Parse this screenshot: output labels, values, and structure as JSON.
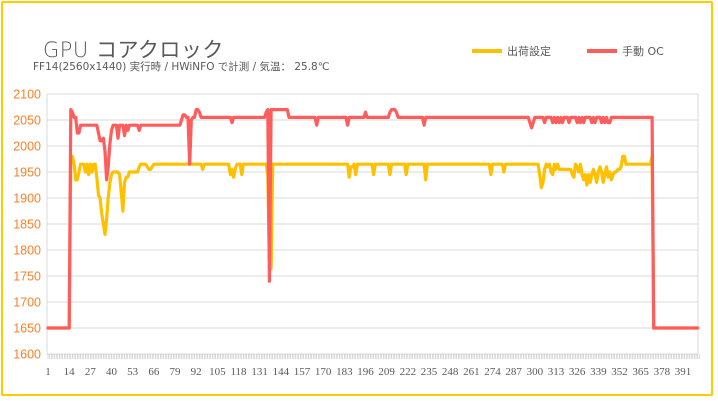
{
  "chart_data": {
    "type": "line",
    "title": "GPU コアクロック",
    "subtitle": "FF14(2560x1440) 実行時 / HWiNFO で計測 / 気温： 25.8℃",
    "xlabel": "",
    "ylabel": "",
    "ylim": [
      1600,
      2100
    ],
    "yticks": [
      1600,
      1650,
      1700,
      1750,
      1800,
      1850,
      1900,
      1950,
      2000,
      2050,
      2100
    ],
    "xticks": [
      1,
      14,
      27,
      40,
      53,
      66,
      79,
      92,
      105,
      118,
      131,
      144,
      157,
      170,
      183,
      196,
      209,
      222,
      235,
      248,
      261,
      274,
      287,
      300,
      313,
      326,
      339,
      352,
      365,
      378,
      391
    ],
    "x_range": [
      1,
      401
    ],
    "grid": true,
    "legend_position": "top-right",
    "series": [
      {
        "name": "出荷設定",
        "color": "#ffc000",
        "segments": [
          [
            1,
            1650
          ],
          [
            13,
            1650
          ],
          [
            14,
            1650
          ],
          [
            15,
            1980
          ],
          [
            16,
            1980
          ],
          [
            17,
            1965
          ],
          [
            18,
            1935
          ],
          [
            19,
            1935
          ],
          [
            20,
            1950
          ],
          [
            21,
            1965
          ],
          [
            22,
            1965
          ],
          [
            23,
            1965
          ],
          [
            24,
            1950
          ],
          [
            25,
            1965
          ],
          [
            26,
            1945
          ],
          [
            27,
            1965
          ],
          [
            28,
            1950
          ],
          [
            29,
            1965
          ],
          [
            30,
            1965
          ],
          [
            31,
            1940
          ],
          [
            32,
            1905
          ],
          [
            33,
            1900
          ],
          [
            34,
            1870
          ],
          [
            35,
            1850
          ],
          [
            36,
            1830
          ],
          [
            37,
            1860
          ],
          [
            38,
            1900
          ],
          [
            39,
            1930
          ],
          [
            40,
            1945
          ],
          [
            41,
            1950
          ],
          [
            42,
            1950
          ],
          [
            43,
            1950
          ],
          [
            44,
            1950
          ],
          [
            45,
            1945
          ],
          [
            46,
            1910
          ],
          [
            47,
            1875
          ],
          [
            48,
            1930
          ],
          [
            49,
            1940
          ],
          [
            50,
            1940
          ],
          [
            51,
            1950
          ],
          [
            52,
            1950
          ],
          [
            53,
            1950
          ],
          [
            54,
            1950
          ],
          [
            55,
            1950
          ],
          [
            56,
            1950
          ],
          [
            57,
            1960
          ],
          [
            58,
            1965
          ],
          [
            59,
            1965
          ],
          [
            60,
            1965
          ],
          [
            61,
            1965
          ],
          [
            62,
            1960
          ],
          [
            63,
            1955
          ],
          [
            64,
            1955
          ],
          [
            65,
            1960
          ],
          [
            66,
            1965
          ],
          [
            70,
            1965
          ],
          [
            80,
            1965
          ],
          [
            90,
            1965
          ],
          [
            95,
            1965
          ],
          [
            96,
            1955
          ],
          [
            97,
            1965
          ],
          [
            110,
            1965
          ],
          [
            112,
            1965
          ],
          [
            113,
            1945
          ],
          [
            114,
            1955
          ],
          [
            115,
            1940
          ],
          [
            116,
            1955
          ],
          [
            117,
            1965
          ],
          [
            119,
            1965
          ],
          [
            120,
            1945
          ],
          [
            121,
            1965
          ],
          [
            135,
            1965
          ],
          [
            136,
            1945
          ],
          [
            137,
            1780
          ],
          [
            138,
            1765
          ],
          [
            139,
            1965
          ],
          [
            150,
            1965
          ],
          [
            170,
            1965
          ],
          [
            185,
            1965
          ],
          [
            186,
            1940
          ],
          [
            187,
            1960
          ],
          [
            188,
            1960
          ],
          [
            189,
            1965
          ],
          [
            190,
            1945
          ],
          [
            191,
            1965
          ],
          [
            200,
            1965
          ],
          [
            201,
            1945
          ],
          [
            202,
            1965
          ],
          [
            210,
            1965
          ],
          [
            211,
            1945
          ],
          [
            212,
            1965
          ],
          [
            220,
            1965
          ],
          [
            221,
            1945
          ],
          [
            222,
            1965
          ],
          [
            232,
            1965
          ],
          [
            233,
            1935
          ],
          [
            234,
            1965
          ],
          [
            250,
            1965
          ],
          [
            270,
            1965
          ],
          [
            272,
            1965
          ],
          [
            273,
            1945
          ],
          [
            274,
            1965
          ],
          [
            280,
            1965
          ],
          [
            281,
            1950
          ],
          [
            282,
            1965
          ],
          [
            290,
            1965
          ],
          [
            300,
            1965
          ],
          [
            302,
            1965
          ],
          [
            303,
            1945
          ],
          [
            304,
            1920
          ],
          [
            305,
            1930
          ],
          [
            306,
            1955
          ],
          [
            307,
            1965
          ],
          [
            308,
            1960
          ],
          [
            309,
            1965
          ],
          [
            310,
            1950
          ],
          [
            311,
            1945
          ],
          [
            312,
            1965
          ],
          [
            313,
            1955
          ],
          [
            314,
            1965
          ],
          [
            315,
            1955
          ],
          [
            318,
            1955
          ],
          [
            322,
            1955
          ],
          [
            323,
            1945
          ],
          [
            324,
            1940
          ],
          [
            325,
            1965
          ],
          [
            326,
            1960
          ],
          [
            327,
            1950
          ],
          [
            328,
            1965
          ],
          [
            329,
            1945
          ],
          [
            330,
            1935
          ],
          [
            331,
            1945
          ],
          [
            332,
            1925
          ],
          [
            333,
            1945
          ],
          [
            334,
            1930
          ],
          [
            335,
            1945
          ],
          [
            336,
            1955
          ],
          [
            337,
            1945
          ],
          [
            338,
            1930
          ],
          [
            339,
            1950
          ],
          [
            340,
            1960
          ],
          [
            341,
            1950
          ],
          [
            342,
            1930
          ],
          [
            343,
            1945
          ],
          [
            344,
            1960
          ],
          [
            345,
            1940
          ],
          [
            346,
            1950
          ],
          [
            347,
            1935
          ],
          [
            348,
            1945
          ],
          [
            349,
            1950
          ],
          [
            350,
            1950
          ],
          [
            351,
            1955
          ],
          [
            352,
            1955
          ],
          [
            353,
            1960
          ],
          [
            354,
            1980
          ],
          [
            355,
            1980
          ],
          [
            356,
            1965
          ],
          [
            360,
            1965
          ],
          [
            365,
            1965
          ],
          [
            370,
            1965
          ],
          [
            371,
            1965
          ],
          [
            372,
            1980
          ],
          [
            373,
            1650
          ],
          [
            380,
            1650
          ],
          [
            400,
            1650
          ]
        ]
      },
      {
        "name": "手動 OC",
        "color": "#ff5c5c",
        "segments": [
          [
            1,
            1650
          ],
          [
            13,
            1650
          ],
          [
            14,
            1650
          ],
          [
            15,
            2070
          ],
          [
            16,
            2065
          ],
          [
            17,
            2055
          ],
          [
            18,
            2055
          ],
          [
            19,
            2025
          ],
          [
            20,
            2025
          ],
          [
            21,
            2040
          ],
          [
            22,
            2040
          ],
          [
            23,
            2040
          ],
          [
            30,
            2040
          ],
          [
            31,
            2040
          ],
          [
            32,
            2025
          ],
          [
            33,
            2010
          ],
          [
            34,
            2010
          ],
          [
            35,
            2015
          ],
          [
            36,
            1990
          ],
          [
            37,
            1935
          ],
          [
            38,
            1960
          ],
          [
            39,
            2005
          ],
          [
            40,
            2030
          ],
          [
            41,
            2040
          ],
          [
            42,
            2040
          ],
          [
            43,
            2040
          ],
          [
            44,
            2015
          ],
          [
            45,
            2040
          ],
          [
            46,
            2040
          ],
          [
            47,
            2040
          ],
          [
            48,
            2020
          ],
          [
            49,
            2040
          ],
          [
            50,
            2030
          ],
          [
            51,
            2040
          ],
          [
            52,
            2040
          ],
          [
            55,
            2040
          ],
          [
            56,
            2040
          ],
          [
            57,
            2030
          ],
          [
            58,
            2040
          ],
          [
            62,
            2040
          ],
          [
            70,
            2040
          ],
          [
            80,
            2040
          ],
          [
            82,
            2040
          ],
          [
            83,
            2050
          ],
          [
            84,
            2060
          ],
          [
            85,
            2060
          ],
          [
            86,
            2055
          ],
          [
            87,
            2055
          ],
          [
            88,
            1965
          ],
          [
            89,
            2050
          ],
          [
            90,
            2055
          ],
          [
            91,
            2055
          ],
          [
            92,
            2070
          ],
          [
            93,
            2070
          ],
          [
            94,
            2065
          ],
          [
            95,
            2055
          ],
          [
            100,
            2055
          ],
          [
            110,
            2055
          ],
          [
            113,
            2055
          ],
          [
            114,
            2045
          ],
          [
            115,
            2055
          ],
          [
            125,
            2055
          ],
          [
            134,
            2055
          ],
          [
            135,
            2065
          ],
          [
            136,
            2070
          ],
          [
            137,
            1740
          ],
          [
            138,
            2070
          ],
          [
            140,
            2070
          ],
          [
            148,
            2070
          ],
          [
            149,
            2055
          ],
          [
            150,
            2055
          ],
          [
            160,
            2055
          ],
          [
            165,
            2055
          ],
          [
            166,
            2040
          ],
          [
            167,
            2055
          ],
          [
            170,
            2055
          ],
          [
            184,
            2055
          ],
          [
            185,
            2040
          ],
          [
            186,
            2055
          ],
          [
            195,
            2055
          ],
          [
            196,
            2065
          ],
          [
            197,
            2055
          ],
          [
            210,
            2055
          ],
          [
            211,
            2065
          ],
          [
            212,
            2070
          ],
          [
            213,
            2070
          ],
          [
            214,
            2070
          ],
          [
            215,
            2065
          ],
          [
            216,
            2055
          ],
          [
            230,
            2055
          ],
          [
            231,
            2055
          ],
          [
            232,
            2040
          ],
          [
            233,
            2055
          ],
          [
            240,
            2055
          ],
          [
            260,
            2055
          ],
          [
            280,
            2055
          ],
          [
            290,
            2055
          ],
          [
            296,
            2055
          ],
          [
            297,
            2045
          ],
          [
            298,
            2035
          ],
          [
            299,
            2045
          ],
          [
            300,
            2055
          ],
          [
            305,
            2055
          ],
          [
            306,
            2045
          ],
          [
            307,
            2055
          ],
          [
            310,
            2055
          ],
          [
            311,
            2045
          ],
          [
            312,
            2055
          ],
          [
            313,
            2045
          ],
          [
            314,
            2055
          ],
          [
            315,
            2045
          ],
          [
            316,
            2055
          ],
          [
            317,
            2045
          ],
          [
            318,
            2055
          ],
          [
            320,
            2055
          ],
          [
            321,
            2045
          ],
          [
            322,
            2055
          ],
          [
            325,
            2055
          ],
          [
            326,
            2045
          ],
          [
            327,
            2055
          ],
          [
            328,
            2045
          ],
          [
            329,
            2055
          ],
          [
            330,
            2045
          ],
          [
            331,
            2055
          ],
          [
            334,
            2055
          ],
          [
            335,
            2045
          ],
          [
            336,
            2055
          ],
          [
            337,
            2045
          ],
          [
            338,
            2055
          ],
          [
            340,
            2055
          ],
          [
            341,
            2045
          ],
          [
            342,
            2055
          ],
          [
            343,
            2045
          ],
          [
            344,
            2055
          ],
          [
            345,
            2045
          ],
          [
            346,
            2045
          ],
          [
            347,
            2055
          ],
          [
            350,
            2055
          ],
          [
            360,
            2055
          ],
          [
            365,
            2055
          ],
          [
            372,
            2055
          ],
          [
            373,
            1650
          ],
          [
            380,
            1650
          ],
          [
            400,
            1650
          ]
        ]
      }
    ]
  },
  "legend": {
    "items": [
      {
        "label": "出荷設定",
        "color": "#ffc000"
      },
      {
        "label": "手動 OC",
        "color": "#ff5c5c"
      }
    ]
  },
  "styles": {
    "frame_color": "#ffcc00",
    "grid_color": "#d9d9d9",
    "ytick_color": "#ff7f27"
  }
}
